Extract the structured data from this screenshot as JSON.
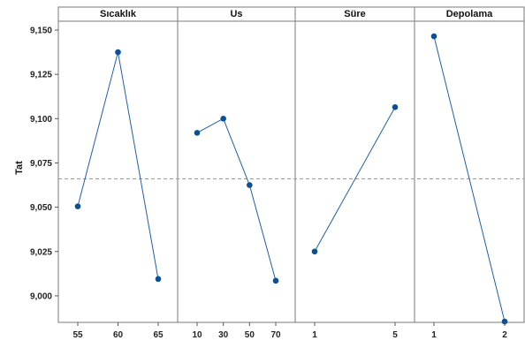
{
  "chart_data": {
    "type": "line",
    "ylabel": "Tat",
    "ylim": [
      8.985,
      9.155
    ],
    "yticks": [
      9.0,
      9.025,
      9.05,
      9.075,
      9.1,
      9.125,
      9.15
    ],
    "ytick_labels": [
      "9,000",
      "9,025",
      "9,050",
      "9,075",
      "9,100",
      "9,125",
      "9,150"
    ],
    "reference_line": 9.066,
    "grid": false,
    "line_color": "#1f5fa8",
    "marker_color": "#0b4f95",
    "reference_color": "#9a9a9a",
    "panels": [
      {
        "title": "Sıcaklık",
        "categories": [
          "55",
          "60",
          "65"
        ],
        "values": [
          9.0505,
          9.1375,
          9.0095
        ]
      },
      {
        "title": "Us",
        "categories": [
          "10",
          "30",
          "50",
          "70"
        ],
        "values": [
          9.092,
          9.1,
          9.0625,
          9.0085
        ]
      },
      {
        "title": "Süre",
        "categories": [
          "1",
          "5"
        ],
        "values": [
          9.025,
          9.1065
        ]
      },
      {
        "title": "Depolama",
        "categories": [
          "1",
          "2"
        ],
        "values": [
          9.1465,
          8.9855
        ]
      }
    ]
  }
}
